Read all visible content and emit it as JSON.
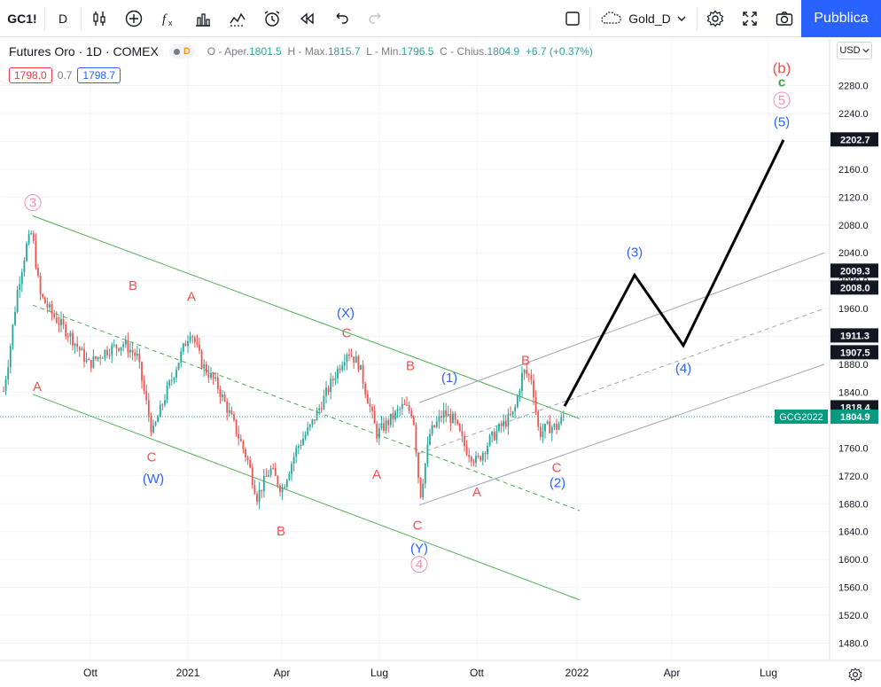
{
  "toolbar": {
    "symbol": "GC1!",
    "interval": "D",
    "layout_name": "Gold_D",
    "publish_label": "Pubblica"
  },
  "legend": {
    "title": "Futures Oro · 1D · COMEX",
    "flag": "D",
    "o_label": "O - Aper.",
    "o_value": "1801.5",
    "h_label": "H - Max.",
    "h_value": "1815.7",
    "l_label": "L - Min.",
    "l_value": "1796.5",
    "c_label": "C - Chius.",
    "c_value": "1804.9",
    "change": "+6.7 (+0.37%)",
    "bid": "1798.0",
    "spread": "0.7",
    "ask": "1798.7"
  },
  "currency": "USD",
  "colors": {
    "up": "#26a69a",
    "down": "#ef5350",
    "channel": "#4caf50",
    "path": "#000000",
    "wave_red": "#ef5350",
    "wave_blue": "#2962ff",
    "wave_pink": "#f48fb1",
    "wave_green": "#43a047",
    "accent": "#2962ff"
  },
  "chart_data": {
    "type": "candlestick",
    "y_ticks": [
      1480,
      1520,
      1560,
      1600,
      1640,
      1680,
      1720,
      1760,
      1800,
      1840,
      1880,
      1920,
      1960,
      2000,
      2040,
      2080,
      2120,
      2160,
      2200,
      2240,
      2280
    ],
    "x_ticks": [
      "Ott",
      "2021",
      "Apr",
      "Lug",
      "Ott",
      "2022",
      "Apr",
      "Lug"
    ],
    "price_labels": [
      {
        "text": "2202.7",
        "price": 2202.7,
        "style": "dark"
      },
      {
        "text": "2009.3",
        "price": 2009.3,
        "style": "dark"
      },
      {
        "text": "2008.0",
        "price": 2008.0,
        "style": "dark"
      },
      {
        "text": "1911.3",
        "price": 1911.3,
        "style": "dark"
      },
      {
        "text": "1907.5",
        "price": 1907.5,
        "style": "dark"
      },
      {
        "text": "1818.4",
        "price": 1818.4,
        "style": "dark"
      },
      {
        "text": "1804.9",
        "price": 1804.9,
        "style": "green"
      }
    ],
    "price_tag": {
      "text": "GCG2022",
      "price": 1804.9
    },
    "price_path": [
      [
        0,
        1810
      ],
      [
        10,
        1890
      ],
      [
        20,
        1990
      ],
      [
        30,
        2050
      ],
      [
        36,
        2070
      ],
      [
        45,
        1980
      ],
      [
        60,
        1950
      ],
      [
        80,
        1920
      ],
      [
        100,
        1880
      ],
      [
        120,
        1900
      ],
      [
        140,
        1910
      ],
      [
        155,
        1890
      ],
      [
        172,
        1780
      ],
      [
        185,
        1830
      ],
      [
        200,
        1880
      ],
      [
        215,
        1930
      ],
      [
        228,
        1880
      ],
      [
        245,
        1850
      ],
      [
        262,
        1800
      ],
      [
        280,
        1740
      ],
      [
        290,
        1690
      ],
      [
        305,
        1730
      ],
      [
        318,
        1700
      ],
      [
        335,
        1760
      ],
      [
        350,
        1790
      ],
      [
        365,
        1830
      ],
      [
        380,
        1870
      ],
      [
        392,
        1900
      ],
      [
        405,
        1880
      ],
      [
        415,
        1830
      ],
      [
        425,
        1780
      ],
      [
        440,
        1800
      ],
      [
        455,
        1820
      ],
      [
        466,
        1810
      ],
      [
        474,
        1690
      ],
      [
        485,
        1780
      ],
      [
        500,
        1810
      ],
      [
        512,
        1800
      ],
      [
        525,
        1760
      ],
      [
        538,
        1740
      ],
      [
        552,
        1770
      ],
      [
        565,
        1790
      ],
      [
        580,
        1810
      ],
      [
        590,
        1870
      ],
      [
        600,
        1860
      ],
      [
        608,
        1780
      ],
      [
        618,
        1790
      ],
      [
        628,
        1790
      ],
      [
        636,
        1805
      ]
    ],
    "annotations": [
      {
        "text": "3",
        "x": 37,
        "price": 2112,
        "color": "pink",
        "circle": true
      },
      {
        "text": "A",
        "x": 42,
        "price": 1848,
        "color": "red"
      },
      {
        "text": "B",
        "x": 150,
        "price": 1993,
        "color": "red"
      },
      {
        "text": "A",
        "x": 216,
        "price": 1977,
        "color": "red"
      },
      {
        "text": "C",
        "x": 171,
        "price": 1747,
        "color": "red"
      },
      {
        "text": "(W)",
        "x": 173,
        "price": 1716,
        "color": "blue"
      },
      {
        "text": "B",
        "x": 317,
        "price": 1641,
        "color": "red"
      },
      {
        "text": "(X)",
        "x": 390,
        "price": 1954,
        "color": "blue"
      },
      {
        "text": "C",
        "x": 391,
        "price": 1925,
        "color": "red"
      },
      {
        "text": "B",
        "x": 463,
        "price": 1878,
        "color": "red"
      },
      {
        "text": "A",
        "x": 425,
        "price": 1722,
        "color": "red"
      },
      {
        "text": "C",
        "x": 471,
        "price": 1649,
        "color": "red"
      },
      {
        "text": "(Y)",
        "x": 473,
        "price": 1616,
        "color": "blue"
      },
      {
        "text": "4",
        "x": 473,
        "price": 1593,
        "color": "pink",
        "circle": true
      },
      {
        "text": "(1)",
        "x": 507,
        "price": 1861,
        "color": "blue"
      },
      {
        "text": "A",
        "x": 538,
        "price": 1697,
        "color": "red"
      },
      {
        "text": "B",
        "x": 593,
        "price": 1886,
        "color": "red"
      },
      {
        "text": "C",
        "x": 628,
        "price": 1732,
        "color": "red"
      },
      {
        "text": "(2)",
        "x": 629,
        "price": 1710,
        "color": "blue"
      },
      {
        "text": "(3)",
        "x": 716,
        "price": 2041,
        "color": "blue"
      },
      {
        "text": "(4)",
        "x": 771,
        "price": 1874,
        "color": "blue"
      },
      {
        "text": "(b)",
        "x": 882,
        "price": 2304,
        "color": "red"
      },
      {
        "text": "c",
        "x": 882,
        "price": 2285,
        "color": "green"
      },
      {
        "text": "5",
        "x": 882,
        "price": 2259,
        "color": "pink",
        "circle": true
      },
      {
        "text": "(5)",
        "x": 882,
        "price": 2228,
        "color": "blue"
      }
    ],
    "forecast_path": [
      [
        637,
        1820
      ],
      [
        716,
        2008
      ],
      [
        771,
        1907
      ],
      [
        884,
        2202
      ]
    ],
    "trendlines": [
      {
        "from": [
          37,
          2093
        ],
        "to": [
          654,
          1802
        ],
        "color": "green",
        "dashed": false
      },
      {
        "from": [
          37,
          1837
        ],
        "to": [
          654,
          1542
        ],
        "color": "green",
        "dashed": false
      },
      {
        "from": [
          37,
          1965
        ],
        "to": [
          654,
          1670
        ],
        "color": "green",
        "dashed": true
      },
      {
        "from": [
          473,
          1678
        ],
        "to": [
          930,
          1880
        ],
        "color": "grey",
        "dashed": false
      },
      {
        "from": [
          473,
          1825
        ],
        "to": [
          930,
          2040
        ],
        "color": "grey",
        "dashed": false
      },
      {
        "from": [
          473,
          1752
        ],
        "to": [
          930,
          1960
        ],
        "color": "grey",
        "dashed": true
      }
    ]
  }
}
